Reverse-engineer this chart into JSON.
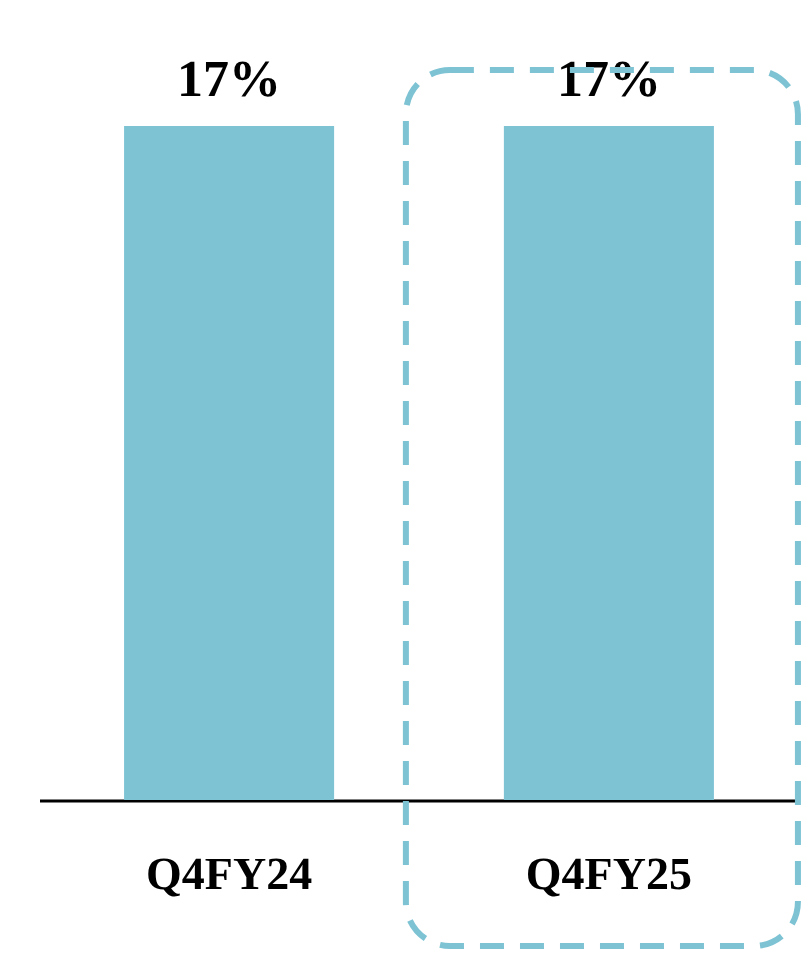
{
  "chart_data": {
    "type": "bar",
    "categories": [
      "Q4FY24",
      "Q4FY25"
    ],
    "values": [
      17,
      17
    ],
    "value_labels": [
      "17%",
      "17%"
    ],
    "color": "#7dc3d4"
  }
}
